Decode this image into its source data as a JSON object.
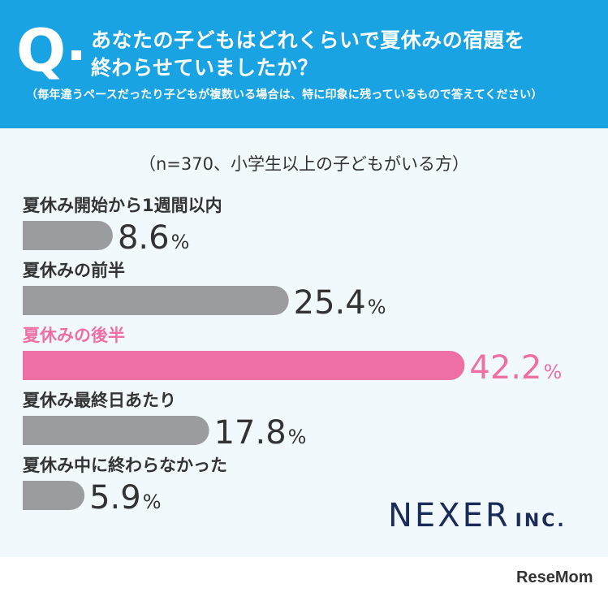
{
  "question": {
    "mark": "Q",
    "line1": "あなたの子どもはどれくらいで夏休みの宿題を",
    "line2": "終わらせていましたか？",
    "note": "（毎年違うペースだったり子どもが複数いる場合は、特に印象に残っているもので答えてください）"
  },
  "sample_note": "（n=370、小学生以上の子どもがいる方）",
  "chart_data": {
    "type": "bar",
    "orientation": "horizontal",
    "categories": [
      "夏休み開始から1週間以内",
      "夏休みの前半",
      "夏休みの後半",
      "夏休み最終日あたり",
      "夏休み中に終わらなかった"
    ],
    "values": [
      8.6,
      25.4,
      42.2,
      17.8,
      5.9
    ],
    "value_labels": [
      "8.6",
      "25.4",
      "42.2",
      "17.8",
      "5.9"
    ],
    "unit": "%",
    "highlight_index": 2,
    "colors": {
      "default": "#9b9ca0",
      "highlight": "#ee6fa4",
      "label": "#333333"
    }
  },
  "brand": {
    "name": "NEXER",
    "suffix": "INC."
  },
  "source": {
    "name_a": "Rese",
    "name_b": "Mom"
  },
  "colors": {
    "header": "#1aa3e3",
    "panel": "#f2f9fc",
    "brand": "#1b2c5a"
  }
}
